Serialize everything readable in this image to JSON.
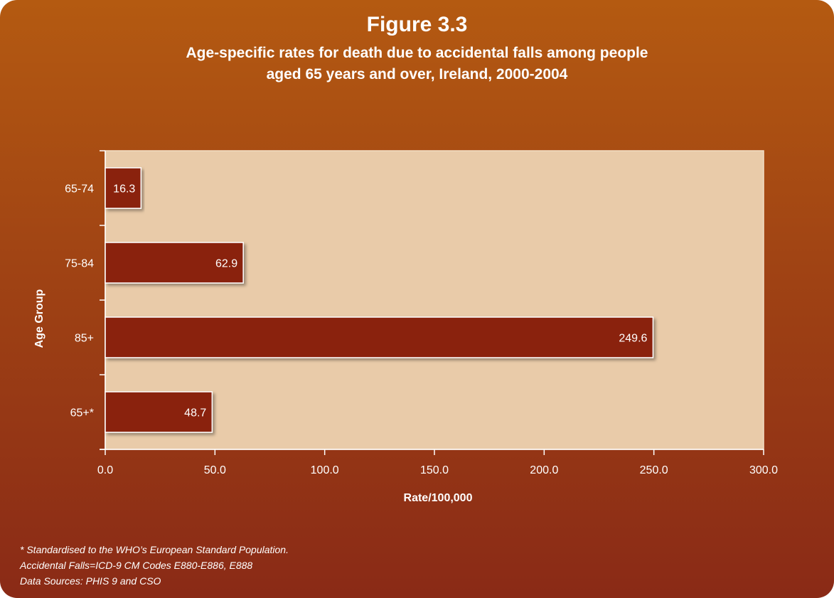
{
  "figure_label": "Figure 3.3",
  "title_line1": "Age-specific rates for death due to accidental falls among people",
  "title_line2": "aged 65 years and over, Ireland, 2000-2004",
  "notes": [
    "* Standardised to the WHO’s European Standard Population.",
    "Accidental Falls=ICD-9 CM Codes E880-E886, E888",
    "Data Sources: PHIS 9 and CSO"
  ],
  "colors": {
    "background_top": "#b45a11",
    "background_bottom": "#8a2a16",
    "plot_area": "#e9cba9",
    "bar": "#8a2211",
    "text": "#ffffff"
  },
  "chart_data": {
    "type": "bar",
    "orientation": "horizontal",
    "categories": [
      "65-74",
      "75-84",
      "85+",
      "65+*"
    ],
    "values": [
      16.3,
      62.9,
      249.6,
      48.7
    ],
    "value_labels": [
      "16.3",
      "62.9",
      "249.6",
      "48.7"
    ],
    "xlabel": "Rate/100,000",
    "ylabel": "Age Group",
    "xlim": [
      0,
      300
    ],
    "x_ticks": [
      0,
      50,
      100,
      150,
      200,
      250,
      300
    ],
    "x_tick_labels": [
      "0.0",
      "50.0",
      "100.0",
      "150.0",
      "200.0",
      "250.0",
      "300.0"
    ],
    "grid": false,
    "legend": "none"
  }
}
